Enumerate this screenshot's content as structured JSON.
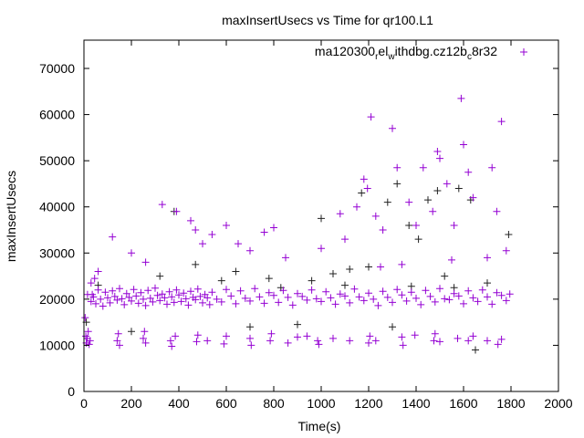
{
  "chart_data": {
    "type": "scatter",
    "title": "maxInsertUsecs vs Time for qr100.L1",
    "xlabel": "Time(s)",
    "ylabel": "maxInsertUsecs",
    "xlim": [
      0,
      2000
    ],
    "ylim": [
      0,
      75000
    ],
    "xticks": [
      0,
      200,
      400,
      600,
      800,
      1000,
      1200,
      1400,
      1600,
      1800,
      2000
    ],
    "yticks": [
      0,
      10000,
      20000,
      30000,
      40000,
      50000,
      60000,
      70000
    ],
    "grid": false,
    "legend_position": "top-right",
    "series": [
      {
        "name": "ma120300_rel_withdbg.cz12b_c8r32",
        "color": "#9400d3",
        "marker": "plus",
        "points": [
          [
            5,
            16000
          ],
          [
            8,
            12000
          ],
          [
            10,
            10500
          ],
          [
            14,
            11500
          ],
          [
            18,
            13000
          ],
          [
            22,
            10200
          ],
          [
            26,
            11000
          ],
          [
            30,
            19500
          ],
          [
            35,
            21000
          ],
          [
            40,
            20500
          ],
          [
            50,
            19000
          ],
          [
            60,
            22000
          ],
          [
            70,
            20000
          ],
          [
            80,
            18500
          ],
          [
            90,
            21500
          ],
          [
            100,
            20300
          ],
          [
            110,
            19200
          ],
          [
            120,
            21800
          ],
          [
            130,
            20600
          ],
          [
            140,
            19800
          ],
          [
            150,
            22300
          ],
          [
            160,
            20100
          ],
          [
            170,
            18800
          ],
          [
            180,
            21200
          ],
          [
            190,
            20400
          ],
          [
            200,
            19600
          ],
          [
            210,
            22100
          ],
          [
            220,
            20700
          ],
          [
            230,
            19100
          ],
          [
            240,
            21400
          ],
          [
            250,
            20000
          ],
          [
            260,
            18600
          ],
          [
            270,
            21900
          ],
          [
            280,
            20200
          ],
          [
            290,
            19400
          ],
          [
            300,
            22400
          ],
          [
            310,
            20800
          ],
          [
            320,
            19700
          ],
          [
            330,
            21100
          ],
          [
            340,
            20300
          ],
          [
            350,
            18900
          ],
          [
            360,
            21600
          ],
          [
            370,
            20500
          ],
          [
            380,
            19300
          ],
          [
            390,
            22000
          ],
          [
            400,
            20900
          ],
          [
            410,
            19500
          ],
          [
            420,
            21300
          ],
          [
            430,
            20100
          ],
          [
            440,
            18700
          ],
          [
            450,
            21700
          ],
          [
            460,
            20400
          ],
          [
            470,
            19900
          ],
          [
            480,
            22200
          ],
          [
            490,
            20600
          ],
          [
            500,
            19200
          ],
          [
            510,
            21000
          ],
          [
            520,
            20300
          ],
          [
            530,
            18800
          ],
          [
            540,
            21500
          ],
          [
            560,
            20000
          ],
          [
            580,
            19400
          ],
          [
            600,
            22100
          ],
          [
            620,
            20700
          ],
          [
            640,
            19000
          ],
          [
            660,
            21800
          ],
          [
            680,
            20200
          ],
          [
            700,
            19600
          ],
          [
            720,
            22300
          ],
          [
            740,
            20500
          ],
          [
            760,
            19100
          ],
          [
            780,
            21400
          ],
          [
            800,
            20800
          ],
          [
            820,
            19300
          ],
          [
            840,
            21900
          ],
          [
            860,
            20400
          ],
          [
            880,
            18700
          ],
          [
            900,
            21200
          ],
          [
            920,
            20600
          ],
          [
            940,
            19800
          ],
          [
            960,
            22000
          ],
          [
            980,
            20100
          ],
          [
            1000,
            19500
          ],
          [
            1020,
            21600
          ],
          [
            1040,
            20300
          ],
          [
            1060,
            18900
          ],
          [
            1080,
            21100
          ],
          [
            1100,
            20700
          ],
          [
            1120,
            19200
          ],
          [
            1140,
            22200
          ],
          [
            1160,
            20500
          ],
          [
            1180,
            19700
          ],
          [
            1200,
            21300
          ],
          [
            1220,
            20000
          ],
          [
            1240,
            18600
          ],
          [
            1260,
            21700
          ],
          [
            1280,
            20400
          ],
          [
            1300,
            19300
          ],
          [
            1320,
            22100
          ],
          [
            1340,
            20900
          ],
          [
            1360,
            19600
          ],
          [
            1380,
            21500
          ],
          [
            1400,
            20200
          ],
          [
            1420,
            18800
          ],
          [
            1440,
            21900
          ],
          [
            1460,
            20600
          ],
          [
            1480,
            19400
          ],
          [
            1500,
            22300
          ],
          [
            1520,
            20100
          ],
          [
            1540,
            19900
          ],
          [
            1560,
            21200
          ],
          [
            1580,
            20700
          ],
          [
            1600,
            19000
          ],
          [
            1620,
            21800
          ],
          [
            1640,
            20300
          ],
          [
            1660,
            19500
          ],
          [
            1680,
            22000
          ],
          [
            1700,
            20500
          ],
          [
            1720,
            18900
          ],
          [
            1740,
            21400
          ],
          [
            1760,
            20800
          ],
          [
            1780,
            19700
          ],
          [
            1795,
            21100
          ],
          [
            140,
            11000
          ],
          [
            145,
            12500
          ],
          [
            150,
            10000
          ],
          [
            250,
            11500
          ],
          [
            255,
            13000
          ],
          [
            260,
            10500
          ],
          [
            365,
            11000
          ],
          [
            370,
            9800
          ],
          [
            385,
            12000
          ],
          [
            475,
            10800
          ],
          [
            480,
            12200
          ],
          [
            520,
            11000
          ],
          [
            590,
            10300
          ],
          [
            600,
            12000
          ],
          [
            700,
            11500
          ],
          [
            705,
            10000
          ],
          [
            785,
            11000
          ],
          [
            790,
            12500
          ],
          [
            860,
            10500
          ],
          [
            900,
            11800
          ],
          [
            940,
            12000
          ],
          [
            985,
            11000
          ],
          [
            990,
            10200
          ],
          [
            1050,
            11500
          ],
          [
            1120,
            11000
          ],
          [
            1200,
            10500
          ],
          [
            1205,
            12000
          ],
          [
            1230,
            11000
          ],
          [
            1340,
            11800
          ],
          [
            1345,
            10000
          ],
          [
            1395,
            12200
          ],
          [
            1475,
            11000
          ],
          [
            1480,
            12500
          ],
          [
            1500,
            10800
          ],
          [
            1575,
            11500
          ],
          [
            1620,
            11000
          ],
          [
            1640,
            12000
          ],
          [
            1700,
            11000
          ],
          [
            1745,
            10200
          ],
          [
            1760,
            11300
          ],
          [
            60,
            26000
          ],
          [
            120,
            33500
          ],
          [
            200,
            30000
          ],
          [
            260,
            28000
          ],
          [
            330,
            40500
          ],
          [
            390,
            39000
          ],
          [
            450,
            37000
          ],
          [
            470,
            35000
          ],
          [
            500,
            32000
          ],
          [
            540,
            34000
          ],
          [
            600,
            36000
          ],
          [
            650,
            32000
          ],
          [
            700,
            30500
          ],
          [
            760,
            34500
          ],
          [
            800,
            35500
          ],
          [
            850,
            29000
          ],
          [
            1000,
            31000
          ],
          [
            1080,
            38500
          ],
          [
            1100,
            33000
          ],
          [
            1150,
            40000
          ],
          [
            1180,
            46000
          ],
          [
            1195,
            44000
          ],
          [
            1210,
            59500
          ],
          [
            1230,
            38000
          ],
          [
            1260,
            35000
          ],
          [
            1300,
            57000
          ],
          [
            1320,
            48500
          ],
          [
            1370,
            41000
          ],
          [
            1400,
            36000
          ],
          [
            1430,
            48500
          ],
          [
            1470,
            39000
          ],
          [
            1490,
            52000
          ],
          [
            1500,
            50500
          ],
          [
            1530,
            45000
          ],
          [
            1560,
            36000
          ],
          [
            1590,
            63500
          ],
          [
            1600,
            53500
          ],
          [
            1620,
            47500
          ],
          [
            1640,
            42000
          ],
          [
            1700,
            29000
          ],
          [
            1720,
            48500
          ],
          [
            1740,
            39000
          ],
          [
            1760,
            58500
          ],
          [
            1780,
            30500
          ],
          [
            1250,
            27000
          ],
          [
            1340,
            27500
          ],
          [
            1550,
            28500
          ],
          [
            30,
            23500
          ],
          [
            15,
            21000
          ],
          [
            45,
            24500
          ]
        ]
      }
    ],
    "dark_points": [
      [
        10,
        15000
      ],
      [
        60,
        23000
      ],
      [
        200,
        13000
      ],
      [
        320,
        25000
      ],
      [
        380,
        39000
      ],
      [
        470,
        27500
      ],
      [
        580,
        24000
      ],
      [
        640,
        26000
      ],
      [
        700,
        14000
      ],
      [
        780,
        24500
      ],
      [
        830,
        22500
      ],
      [
        900,
        14500
      ],
      [
        960,
        24000
      ],
      [
        1000,
        37500
      ],
      [
        1050,
        25500
      ],
      [
        1120,
        26500
      ],
      [
        1170,
        43000
      ],
      [
        1200,
        27000
      ],
      [
        1280,
        41000
      ],
      [
        1320,
        45000
      ],
      [
        1370,
        36000
      ],
      [
        1410,
        33000
      ],
      [
        1450,
        41500
      ],
      [
        1490,
        43500
      ],
      [
        1520,
        25000
      ],
      [
        1560,
        22500
      ],
      [
        1580,
        44000
      ],
      [
        1630,
        41500
      ],
      [
        1650,
        9000
      ],
      [
        1700,
        23500
      ],
      [
        1790,
        34000
      ],
      [
        1300,
        14000
      ],
      [
        1380,
        22800
      ],
      [
        1100,
        23000
      ]
    ]
  }
}
